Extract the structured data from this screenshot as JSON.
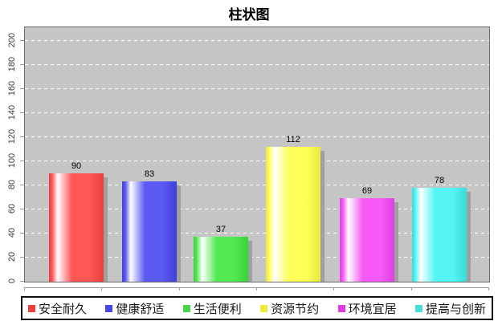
{
  "chart_data": {
    "type": "bar",
    "title": "柱状图",
    "categories": [
      "安全耐久",
      "健康舒适",
      "生活便利",
      "资源节约",
      "环境宜居",
      "提高与创新"
    ],
    "values": [
      90,
      83,
      37,
      112,
      69,
      78
    ],
    "value_labels": [
      "90",
      "83",
      "37",
      "112",
      "69",
      "78"
    ],
    "series_colors": [
      {
        "name": "安全耐久",
        "base": "#ff5656",
        "dark": "#e84040",
        "legend_swatch": "#ee3c3c"
      },
      {
        "name": "健康舒适",
        "base": "#5a5af2",
        "dark": "#4040d8",
        "legend_swatch": "#4646e0"
      },
      {
        "name": "生活便利",
        "base": "#52ea52",
        "dark": "#3ad03a",
        "legend_swatch": "#46d846"
      },
      {
        "name": "资源节约",
        "base": "#ffff5a",
        "dark": "#e8e840",
        "legend_swatch": "#ecec3c"
      },
      {
        "name": "环境宜居",
        "base": "#f75af7",
        "dark": "#e040e0",
        "legend_swatch": "#e03ce0"
      },
      {
        "name": "提高与创新",
        "base": "#55f5f5",
        "dark": "#3adada",
        "legend_swatch": "#46dcdc"
      }
    ],
    "xlabel": "",
    "ylabel": "",
    "ylim": [
      0,
      200
    ],
    "ytick_interval": 20,
    "ytick_labels": [
      "0",
      "20",
      "40",
      "60",
      "80",
      "100",
      "120",
      "140",
      "160",
      "180",
      "200"
    ],
    "grid": "horizontal-dashed-white",
    "plot_background": "#c5c5c5",
    "shadow_color": "#a0a0a0",
    "legend_position": "bottom"
  }
}
